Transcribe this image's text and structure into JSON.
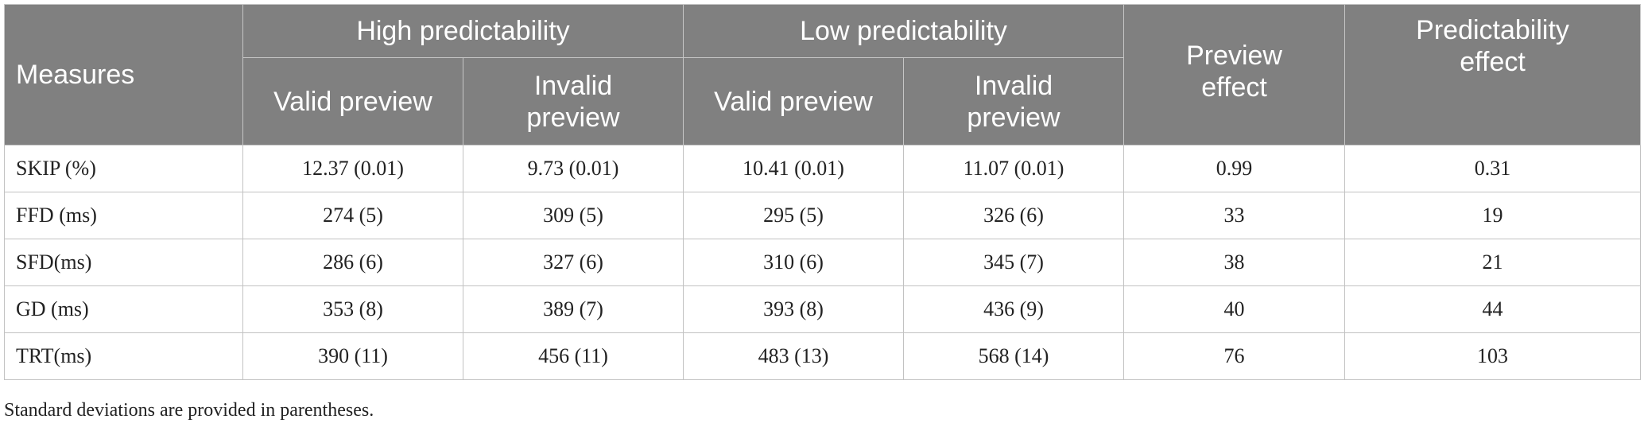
{
  "table": {
    "header": {
      "measures": "Measures",
      "high_predictability": "High predictability",
      "low_predictability": "Low predictability",
      "preview_effect": "Preview effect",
      "predictability_effect": "Predictability effect",
      "valid_preview": "Valid preview",
      "invalid_preview": "Invalid preview"
    },
    "rows": [
      {
        "measure": "SKIP (%)",
        "high_valid": "12.37 (0.01)",
        "high_invalid": "9.73 (0.01)",
        "low_valid": "10.41 (0.01)",
        "low_invalid": "11.07 (0.01)",
        "preview_effect": "0.99",
        "predictability_effect": "0.31"
      },
      {
        "measure": "FFD (ms)",
        "high_valid": "274 (5)",
        "high_invalid": "309 (5)",
        "low_valid": "295 (5)",
        "low_invalid": "326 (6)",
        "preview_effect": "33",
        "predictability_effect": "19"
      },
      {
        "measure": "SFD(ms)",
        "high_valid": "286 (6)",
        "high_invalid": "327 (6)",
        "low_valid": "310 (6)",
        "low_invalid": "345 (7)",
        "preview_effect": "38",
        "predictability_effect": "21"
      },
      {
        "measure": "GD (ms)",
        "high_valid": "353 (8)",
        "high_invalid": "389 (7)",
        "low_valid": "393 (8)",
        "low_invalid": "436 (9)",
        "preview_effect": "40",
        "predictability_effect": "44"
      },
      {
        "measure": "TRT(ms)",
        "high_valid": "390 (11)",
        "high_invalid": "456 (11)",
        "low_valid": "483 (13)",
        "low_invalid": "568 (14)",
        "preview_effect": "76",
        "predictability_effect": "103"
      }
    ]
  },
  "footnote": "Standard deviations are provided in parentheses."
}
